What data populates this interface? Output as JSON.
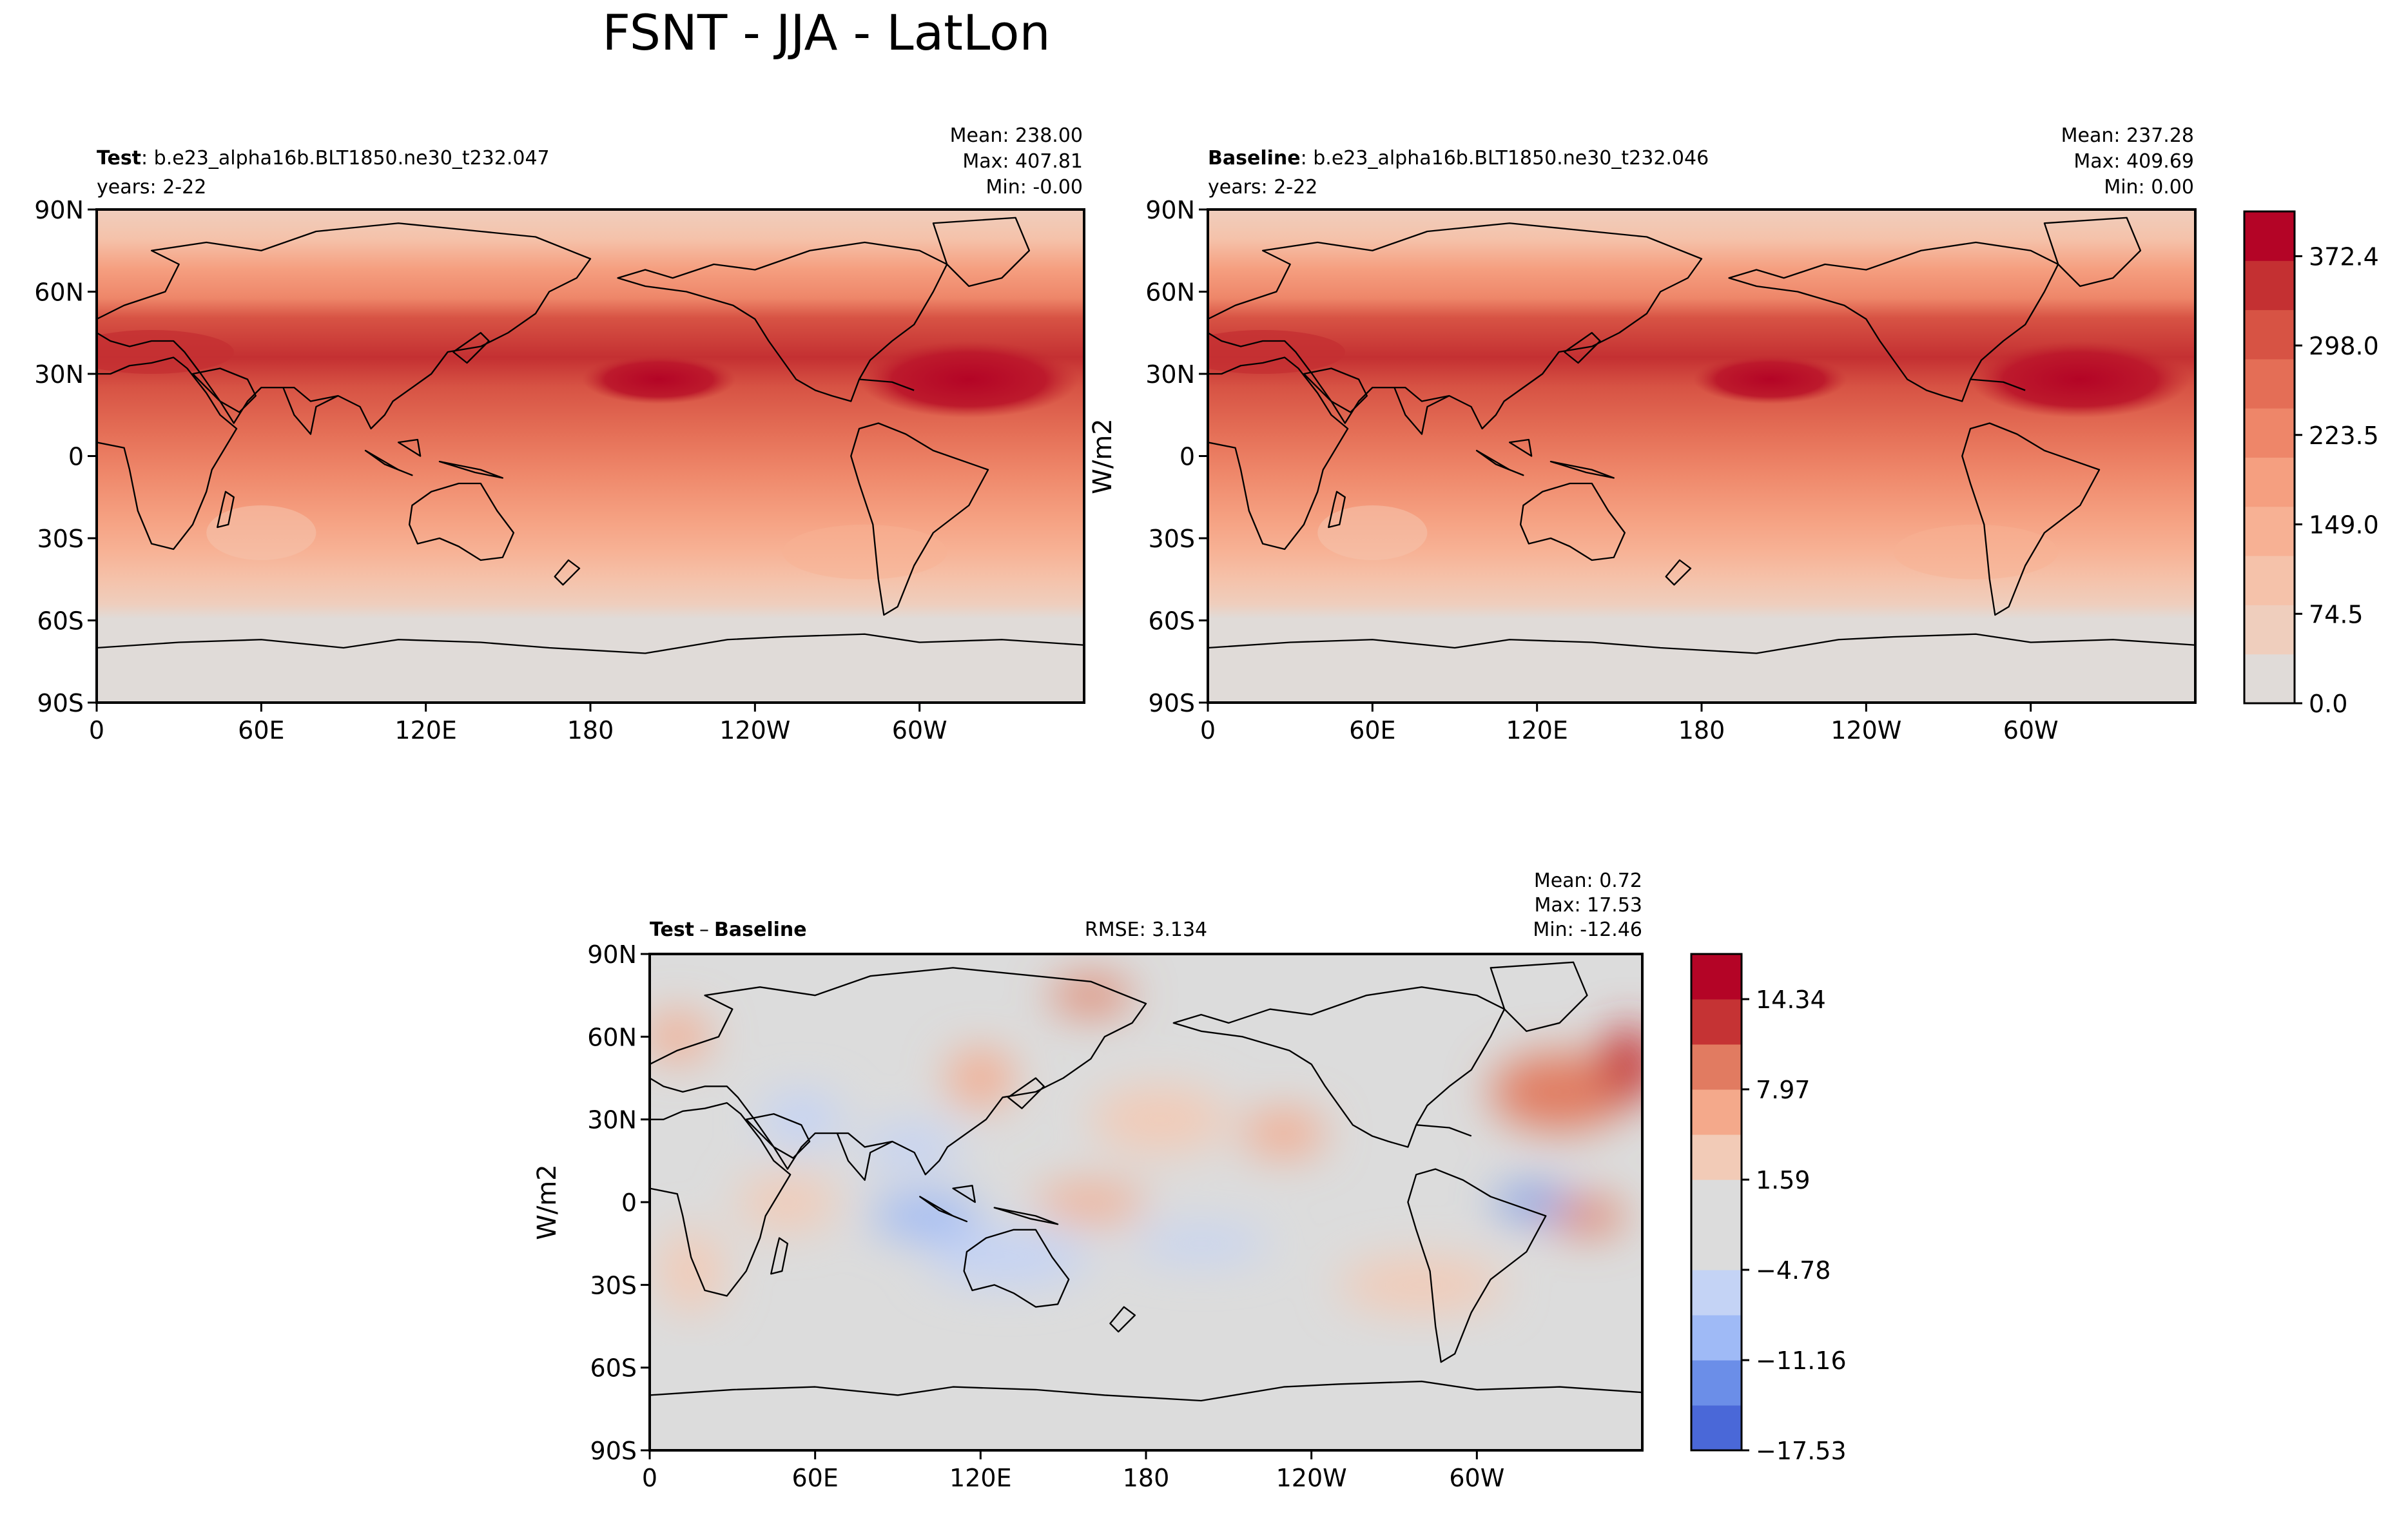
{
  "title": "FSNT - JJA - LatLon",
  "chart_data": [
    {
      "type": "heatmap",
      "panel": "test",
      "label_bold": "Test",
      "label_rest": ": b.e23_alpha16b.BLT1850.ne30_t232.047",
      "years": "years: 2-22",
      "stats": {
        "mean": "Mean: 238.00",
        "max": "Max: 407.81",
        "min": "Min: -0.00"
      },
      "lat_ticks": [
        "90N",
        "60N",
        "30N",
        "0",
        "30S",
        "60S",
        "90S"
      ],
      "lon_ticks": [
        "0",
        "60E",
        "120E",
        "180",
        "120W",
        "60W"
      ],
      "xlim": [
        0,
        360
      ],
      "ylim": [
        -90,
        90
      ],
      "units": "W/m2"
    },
    {
      "type": "heatmap",
      "panel": "baseline",
      "label_bold": "Baseline",
      "label_rest": ": b.e23_alpha16b.BLT1850.ne30_t232.046",
      "years": "years: 2-22",
      "stats": {
        "mean": "Mean: 237.28",
        "max": "Max: 409.69",
        "min": "Min:  0.00"
      },
      "lat_ticks": [
        "90N",
        "60N",
        "30N",
        "0",
        "30S",
        "60S",
        "90S"
      ],
      "lon_ticks": [
        "0",
        "60E",
        "120E",
        "180",
        "120W",
        "60W"
      ],
      "xlim": [
        0,
        360
      ],
      "ylim": [
        -90,
        90
      ],
      "units": "W/m2",
      "colorbar": {
        "ylabel": "W/m2",
        "ticks": [
          "372.4",
          "298.0",
          "223.5",
          "149.0",
          "74.5",
          "0.0"
        ],
        "tick_values": [
          372.4,
          298.0,
          223.5,
          149.0,
          74.5,
          0.0
        ],
        "range": [
          0,
          409.69
        ],
        "colors": [
          "#e0dbd8",
          "#efcebd",
          "#f5c2aa",
          "#f7b194",
          "#f59f80",
          "#ee8669",
          "#e46e56",
          "#d75344",
          "#c43032",
          "#b40426"
        ]
      }
    },
    {
      "type": "heatmap",
      "panel": "difference",
      "label_bold_a": "Test",
      "label_minus": "–",
      "label_bold_b": "Baseline",
      "rmse": "RMSE: 3.134",
      "stats": {
        "mean": "Mean:  0.72",
        "max": "Max: 17.53",
        "min": "Min: -12.46"
      },
      "lat_ticks": [
        "90N",
        "60N",
        "30N",
        "0",
        "30S",
        "60S",
        "90S"
      ],
      "lon_ticks": [
        "0",
        "60E",
        "120E",
        "180",
        "120W",
        "60W"
      ],
      "xlim": [
        0,
        360
      ],
      "ylim": [
        -90,
        90
      ],
      "units": "W/m2",
      "colorbar": {
        "ylabel": "W/m2",
        "ticks": [
          "14.34",
          "7.97",
          "1.59",
          "−4.78",
          "−11.16",
          "−17.53"
        ],
        "tick_values": [
          14.34,
          7.97,
          1.59,
          -4.78,
          -11.16,
          -17.53
        ],
        "range": [
          -17.53,
          17.53
        ],
        "colors": [
          "#4a68d8",
          "#6b8ee8",
          "#9fbaf6",
          "#c4d3f5",
          "#dcdcdc",
          "#dcdcdc",
          "#f2cbb7",
          "#f4a98b",
          "#e17b61",
          "#c53334",
          "#b40426"
        ]
      }
    }
  ]
}
